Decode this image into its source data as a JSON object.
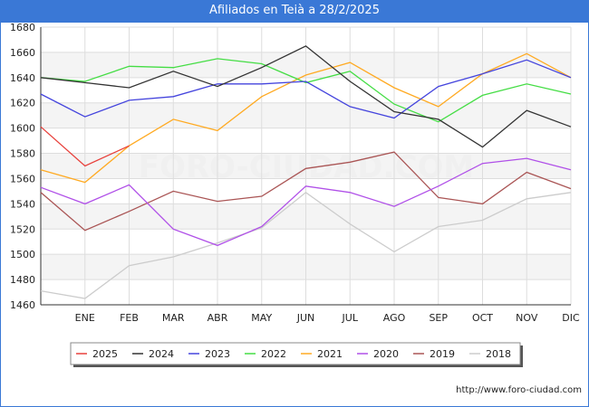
{
  "header": {
    "title": "Afiliados en Teià a 28/2/2025"
  },
  "footer": {
    "source": "http://www.foro-ciudad.com"
  },
  "watermark": "FORO-CIUDAD.COM",
  "chart_data": {
    "type": "line",
    "title": "Afiliados en Teià a 28/2/2025",
    "xlabel": "",
    "ylabel": "",
    "categories": [
      "",
      "ENE",
      "FEB",
      "MAR",
      "ABR",
      "MAY",
      "JUN",
      "JUL",
      "AGO",
      "SEP",
      "OCT",
      "NOV",
      "DIC"
    ],
    "ylim": [
      1460,
      1680
    ],
    "yticks": [
      1460,
      1480,
      1500,
      1520,
      1540,
      1560,
      1580,
      1600,
      1620,
      1640,
      1660,
      1680
    ],
    "grid": true,
    "legend_position": "bottom",
    "series": [
      {
        "name": "2025",
        "color": "#e8413c",
        "values": [
          1601,
          1570,
          1586,
          null,
          null,
          null,
          null,
          null,
          null,
          null,
          null,
          null,
          null
        ]
      },
      {
        "name": "2024",
        "color": "#333333",
        "values": [
          1640,
          1636,
          1632,
          1645,
          1633,
          1648,
          1665,
          1637,
          1613,
          1607,
          1585,
          1614,
          1601
        ]
      },
      {
        "name": "2023",
        "color": "#4444dd",
        "values": [
          1627,
          1609,
          1622,
          1625,
          1635,
          1635,
          1637,
          1617,
          1608,
          1633,
          1643,
          1654,
          1640
        ]
      },
      {
        "name": "2022",
        "color": "#44dd44",
        "values": [
          1640,
          1637,
          1649,
          1648,
          1655,
          1651,
          1636,
          1645,
          1619,
          1605,
          1626,
          1635,
          1627
        ]
      },
      {
        "name": "2021",
        "color": "#ffaa22",
        "values": [
          1567,
          1557,
          1586,
          1607,
          1598,
          1625,
          1642,
          1652,
          1632,
          1617,
          1643,
          1659,
          1640
        ]
      },
      {
        "name": "2020",
        "color": "#b050e8",
        "values": [
          1553,
          1540,
          1555,
          1520,
          1507,
          1522,
          1554,
          1549,
          1538,
          1554,
          1572,
          1576,
          1567
        ]
      },
      {
        "name": "2019",
        "color": "#aa5555",
        "values": [
          1549,
          1519,
          1534,
          1550,
          1542,
          1546,
          1568,
          1573,
          1581,
          1545,
          1540,
          1565,
          1552
        ]
      },
      {
        "name": "2018",
        "color": "#cccccc",
        "values": [
          1471,
          1465,
          1491,
          1498,
          1509,
          1521,
          1549,
          1524,
          1502,
          1522,
          1527,
          1544,
          1549
        ]
      }
    ]
  }
}
